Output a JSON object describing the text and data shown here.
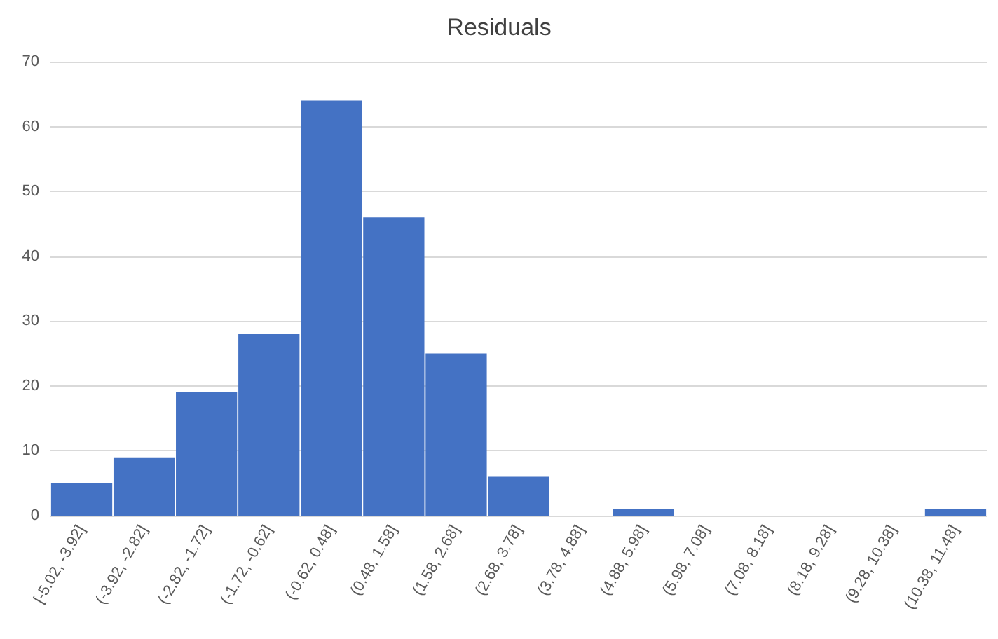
{
  "chart_data": {
    "type": "bar",
    "title": "Residuals",
    "categories": [
      "[-5.02, -3.92]",
      "(-3.92, -2.82]",
      "(-2.82, -1.72]",
      "(-1.72, -0.62]",
      "(-0.62, 0.48]",
      "(0.48, 1.58]",
      "(1.58, 2.68]",
      "(2.68, 3.78]",
      "(3.78, 4.88]",
      "(4.88, 5.98]",
      "(5.98, 7.08]",
      "(7.08, 8.18]",
      "(8.18, 9.28]",
      "(9.28, 10.38]",
      "(10.38, 11.48]"
    ],
    "values": [
      5,
      9,
      19,
      28,
      64,
      46,
      25,
      6,
      0,
      1,
      0,
      0,
      0,
      0,
      1
    ],
    "color": "#4472c4",
    "ylim": [
      0,
      70
    ],
    "yticks": [
      0,
      10,
      20,
      30,
      40,
      50,
      60,
      70
    ],
    "grid": "y"
  }
}
